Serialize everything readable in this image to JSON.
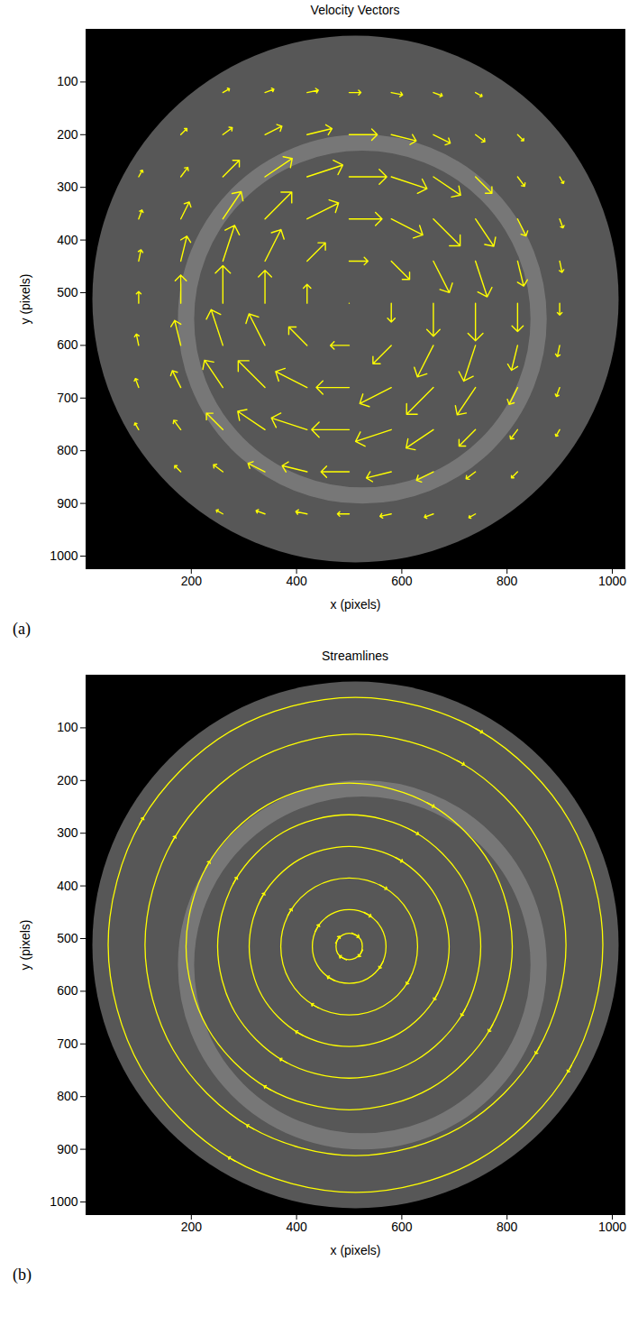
{
  "chart_data": [
    {
      "type": "vector",
      "title": "Velocity Vectors",
      "caption": "(a)",
      "x_label": "x (pixels)",
      "y_label": "y (pixels)",
      "xlim": [
        0,
        1024
      ],
      "ylim": [
        1024,
        0
      ],
      "xticks": [
        200,
        400,
        600,
        800,
        1000
      ],
      "yticks": [
        100,
        200,
        300,
        400,
        500,
        600,
        700,
        800,
        900,
        1000
      ],
      "color": "#ffff00",
      "disk": {
        "center": [
          512,
          512
        ],
        "radius": 500
      },
      "ring": {
        "center": [
          525,
          550
        ],
        "radius": 335
      },
      "vectors": {
        "x": [
          100,
          180,
          260,
          340,
          420,
          500,
          580,
          660,
          740,
          820,
          900
        ],
        "y": [
          120,
          200,
          280,
          360,
          440,
          520,
          600,
          680,
          760,
          840,
          920
        ],
        "u": [
          [
            null,
            null,
            1.4,
            1.9,
            2.4,
            2.5,
            2.4,
            1.9,
            1.4,
            null,
            null
          ],
          [
            null,
            1.3,
            2.0,
            3.6,
            5.3,
            6.0,
            5.3,
            3.6,
            2.0,
            1.3,
            null
          ],
          [
            0.8,
            1.5,
            3.5,
            5.8,
            7.6,
            8.0,
            7.6,
            5.8,
            3.5,
            1.5,
            0.8
          ],
          [
            0.7,
            1.8,
            3.9,
            5.7,
            6.7,
            7.0,
            6.7,
            5.7,
            3.9,
            1.8,
            0.7
          ],
          [
            0.5,
            1.3,
            2.5,
            3.4,
            3.9,
            4.0,
            3.9,
            3.4,
            2.5,
            1.3,
            0.5
          ],
          [
            0,
            0,
            0,
            0,
            0,
            0,
            0,
            0,
            0,
            0,
            0
          ],
          [
            -0.5,
            -1.3,
            -2.5,
            -3.4,
            -3.9,
            -4.0,
            -3.9,
            -3.4,
            -2.5,
            -1.3,
            -0.5
          ],
          [
            -0.7,
            -1.8,
            -3.9,
            -5.7,
            -6.7,
            -7.0,
            -6.7,
            -5.7,
            -3.9,
            -1.8,
            -0.7
          ],
          [
            -0.8,
            -1.5,
            -3.5,
            -5.8,
            -7.6,
            -8.0,
            -7.6,
            -5.8,
            -3.5,
            -1.5,
            -0.8
          ],
          [
            null,
            -1.3,
            -2.0,
            -3.6,
            -5.3,
            -6.0,
            -5.3,
            -3.6,
            -2.0,
            -1.3,
            null
          ],
          [
            null,
            null,
            -1.4,
            -1.9,
            -2.4,
            -2.5,
            -2.4,
            -1.9,
            -1.4,
            null,
            null
          ]
        ],
        "v": [
          [
            null,
            null,
            -0.8,
            -0.7,
            -0.5,
            0,
            0.5,
            0.7,
            0.8,
            null,
            null
          ],
          [
            null,
            -1.3,
            -1.5,
            -1.8,
            -1.3,
            0,
            1.3,
            1.8,
            1.5,
            1.3,
            null
          ],
          [
            -1.4,
            -2.0,
            -3.5,
            -3.9,
            -2.5,
            0,
            2.5,
            3.9,
            3.5,
            2.0,
            1.4
          ],
          [
            -1.9,
            -3.6,
            -5.8,
            -5.7,
            -3.4,
            0,
            3.4,
            5.7,
            5.8,
            3.6,
            1.9
          ],
          [
            -2.4,
            -5.3,
            -7.6,
            -6.7,
            -3.9,
            0,
            3.9,
            6.7,
            7.6,
            5.3,
            2.4
          ],
          [
            -2.5,
            -6.0,
            -8.0,
            -7.0,
            -4.0,
            0,
            4.0,
            7.0,
            8.0,
            6.0,
            2.5
          ],
          [
            -2.4,
            -5.3,
            -7.6,
            -6.7,
            -3.9,
            0,
            3.9,
            6.7,
            7.6,
            5.3,
            2.4
          ],
          [
            -1.9,
            -3.6,
            -5.8,
            -5.7,
            -3.4,
            0,
            3.4,
            5.7,
            5.8,
            3.6,
            1.9
          ],
          [
            -1.4,
            -2.0,
            -3.5,
            -3.9,
            -2.5,
            0,
            2.5,
            3.9,
            3.5,
            2.0,
            1.4
          ],
          [
            null,
            -1.3,
            -1.5,
            -1.8,
            -1.3,
            0,
            1.3,
            1.8,
            1.5,
            1.3,
            null
          ],
          [
            null,
            null,
            -0.8,
            -0.7,
            -0.5,
            0,
            0.5,
            0.7,
            0.8,
            null,
            null
          ]
        ]
      }
    },
    {
      "type": "streamline",
      "title": "Streamlines",
      "caption": "(b)",
      "x_label": "x (pixels)",
      "y_label": "y (pixels)",
      "xlim": [
        0,
        1024
      ],
      "ylim": [
        1024,
        0
      ],
      "xticks": [
        200,
        400,
        600,
        800,
        1000
      ],
      "yticks": [
        100,
        200,
        300,
        400,
        500,
        600,
        700,
        800,
        900,
        1000
      ],
      "color": "#ffff00",
      "disk": {
        "center": [
          512,
          512
        ],
        "radius": 500
      },
      "ring": {
        "center": [
          525,
          550
        ],
        "radius": 335
      },
      "streamlines": [
        {
          "x": [
            525,
            522,
            512,
            500,
            488,
            478,
            475,
            478,
            488,
            500,
            512,
            522
          ],
          "y": [
            515,
            528,
            537,
            540,
            537,
            528,
            515,
            502,
            493,
            490,
            493,
            502
          ]
        },
        {
          "x": [
            570,
            561,
            535,
            500,
            465,
            439,
            430,
            439,
            465,
            500,
            535,
            561
          ],
          "y": [
            515,
            550,
            576,
            585,
            576,
            550,
            515,
            480,
            454,
            445,
            454,
            480
          ]
        },
        {
          "x": [
            630,
            613,
            565,
            500,
            435,
            387,
            370,
            387,
            435,
            500,
            565,
            613
          ],
          "y": [
            515,
            580,
            628,
            645,
            628,
            580,
            515,
            450,
            402,
            385,
            402,
            450
          ]
        },
        {
          "x": [
            690,
            665,
            595,
            500,
            405,
            335,
            310,
            335,
            405,
            500,
            595,
            665
          ],
          "y": [
            515,
            610,
            680,
            705,
            680,
            610,
            515,
            420,
            350,
            325,
            350,
            420
          ]
        },
        {
          "x": [
            750,
            717,
            625,
            500,
            375,
            283,
            250,
            283,
            375,
            500,
            625,
            717
          ],
          "y": [
            515,
            640,
            732,
            765,
            732,
            640,
            515,
            390,
            298,
            265,
            298,
            390
          ]
        },
        {
          "x": [
            810,
            769,
            655,
            500,
            345,
            231,
            190,
            231,
            345,
            500,
            655,
            769
          ],
          "y": [
            515,
            670,
            784,
            825,
            784,
            670,
            515,
            360,
            246,
            205,
            246,
            360
          ]
        },
        {
          "x": [
            912,
            858,
            712,
            512,
            312,
            166,
            112,
            166,
            312,
            512,
            712,
            858
          ],
          "y": [
            512,
            712,
            858,
            912,
            858,
            712,
            512,
            312,
            166,
            112,
            166,
            312
          ]
        },
        {
          "x": [
            982,
            919,
            747,
            512,
            277,
            105,
            42,
            105,
            277,
            512,
            747,
            919
          ],
          "y": [
            512,
            747,
            919,
            982,
            919,
            747,
            512,
            277,
            105,
            42,
            105,
            277
          ]
        }
      ]
    }
  ]
}
